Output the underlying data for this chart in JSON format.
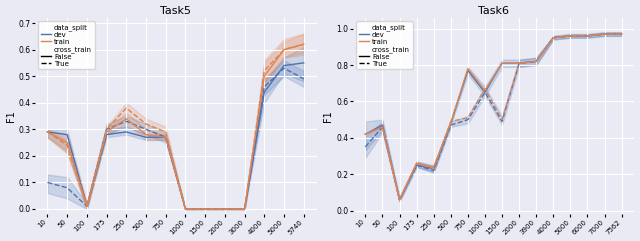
{
  "x_labels_t5": [
    10,
    50,
    100,
    175,
    250,
    500,
    750,
    1000,
    1500,
    2000,
    3000,
    4000,
    5000,
    5740
  ],
  "x_labels_t6": [
    10,
    50,
    100,
    175,
    250,
    500,
    750,
    1000,
    1500,
    2000,
    3900,
    4000,
    5000,
    6000,
    7000,
    7562
  ],
  "t5_dev_false": [
    0.29,
    0.28,
    0.01,
    0.28,
    0.29,
    0.27,
    0.27,
    0.0,
    0.0,
    0.0,
    0.0,
    0.44,
    0.54,
    0.55
  ],
  "t5_dev_true": [
    0.1,
    0.08,
    0.01,
    0.3,
    0.33,
    0.3,
    0.27,
    0.0,
    0.0,
    0.0,
    0.0,
    0.46,
    0.53,
    0.49
  ],
  "t5_train_false": [
    0.29,
    0.25,
    0.01,
    0.29,
    0.34,
    0.28,
    0.27,
    0.0,
    0.0,
    0.0,
    0.0,
    0.5,
    0.6,
    0.62
  ],
  "t5_train_true": [
    0.29,
    0.24,
    0.01,
    0.3,
    0.38,
    0.32,
    0.29,
    0.0,
    0.0,
    0.0,
    0.0,
    0.52,
    0.6,
    0.62
  ],
  "t5_dev_false_lo": [
    0.27,
    0.22,
    0.0,
    0.27,
    0.28,
    0.26,
    0.26,
    0.0,
    0.0,
    0.0,
    0.0,
    0.4,
    0.51,
    0.48
  ],
  "t5_dev_false_hi": [
    0.3,
    0.3,
    0.02,
    0.3,
    0.31,
    0.28,
    0.28,
    0.0,
    0.0,
    0.0,
    0.0,
    0.48,
    0.57,
    0.61
  ],
  "t5_dev_true_lo": [
    0.06,
    0.04,
    0.0,
    0.28,
    0.31,
    0.28,
    0.25,
    0.0,
    0.0,
    0.0,
    0.0,
    0.43,
    0.5,
    0.46
  ],
  "t5_dev_true_hi": [
    0.13,
    0.12,
    0.02,
    0.32,
    0.35,
    0.32,
    0.29,
    0.0,
    0.0,
    0.0,
    0.0,
    0.49,
    0.56,
    0.52
  ],
  "t5_train_false_lo": [
    0.27,
    0.21,
    0.0,
    0.28,
    0.32,
    0.26,
    0.26,
    0.0,
    0.0,
    0.0,
    0.0,
    0.46,
    0.57,
    0.58
  ],
  "t5_train_false_hi": [
    0.3,
    0.28,
    0.02,
    0.31,
    0.36,
    0.3,
    0.28,
    0.0,
    0.0,
    0.0,
    0.0,
    0.55,
    0.63,
    0.66
  ],
  "t5_train_true_lo": [
    0.27,
    0.21,
    0.0,
    0.29,
    0.36,
    0.3,
    0.27,
    0.0,
    0.0,
    0.0,
    0.0,
    0.48,
    0.57,
    0.59
  ],
  "t5_train_true_hi": [
    0.3,
    0.26,
    0.02,
    0.31,
    0.4,
    0.34,
    0.31,
    0.0,
    0.0,
    0.0,
    0.0,
    0.56,
    0.64,
    0.66
  ],
  "t6_dev_false": [
    0.42,
    0.47,
    0.06,
    0.25,
    0.23,
    0.48,
    0.77,
    0.65,
    0.81,
    0.81,
    0.82,
    0.95,
    0.96,
    0.96,
    0.97,
    0.97
  ],
  "t6_dev_true": [
    0.35,
    0.46,
    0.06,
    0.25,
    0.22,
    0.47,
    0.5,
    0.65,
    0.49,
    0.81,
    0.82,
    0.95,
    0.96,
    0.96,
    0.97,
    0.97
  ],
  "t6_train_false": [
    0.42,
    0.46,
    0.06,
    0.26,
    0.24,
    0.48,
    0.78,
    0.66,
    0.81,
    0.81,
    0.82,
    0.95,
    0.96,
    0.96,
    0.97,
    0.97
  ],
  "t6_train_true": [
    0.42,
    0.46,
    0.06,
    0.26,
    0.23,
    0.49,
    0.51,
    0.67,
    0.5,
    0.81,
    0.82,
    0.95,
    0.96,
    0.96,
    0.97,
    0.97
  ],
  "t6_dev_false_lo": [
    0.33,
    0.44,
    0.05,
    0.24,
    0.21,
    0.47,
    0.75,
    0.63,
    0.79,
    0.79,
    0.8,
    0.94,
    0.95,
    0.95,
    0.96,
    0.96
  ],
  "t6_dev_false_hi": [
    0.49,
    0.5,
    0.07,
    0.27,
    0.25,
    0.5,
    0.79,
    0.68,
    0.83,
    0.83,
    0.84,
    0.96,
    0.97,
    0.97,
    0.98,
    0.98
  ],
  "t6_dev_true_lo": [
    0.29,
    0.43,
    0.05,
    0.24,
    0.21,
    0.46,
    0.48,
    0.63,
    0.47,
    0.79,
    0.8,
    0.94,
    0.95,
    0.95,
    0.96,
    0.96
  ],
  "t6_dev_true_hi": [
    0.41,
    0.49,
    0.07,
    0.27,
    0.24,
    0.49,
    0.52,
    0.68,
    0.52,
    0.83,
    0.84,
    0.96,
    0.97,
    0.97,
    0.98,
    0.98
  ],
  "color_dev": "#4C72B0",
  "color_train": "#DD8452",
  "bg_color": "#EAEAF4",
  "title_t5": "Task5",
  "title_t6": "Task6",
  "ylabel": "F1"
}
